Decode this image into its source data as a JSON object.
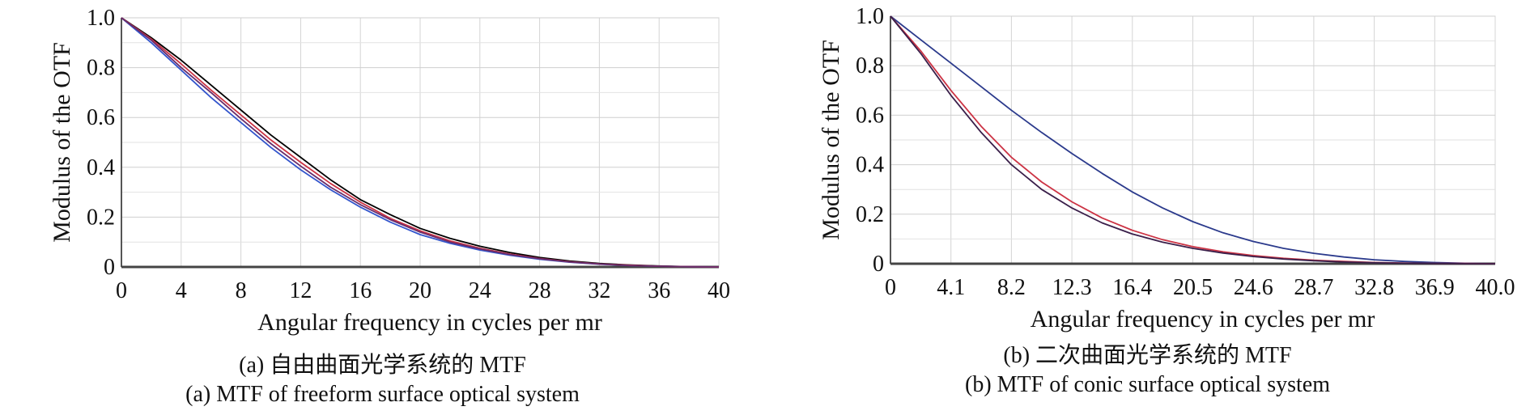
{
  "chart_data": [
    {
      "type": "line",
      "ylabel": "Modulus of the OTF",
      "xlabel": "Angular frequency in cycles per mr",
      "caption_cn": "(a) 自由曲面光学系统的 MTF",
      "caption_en": "(a) MTF of freeform surface optical system",
      "xlim": [
        0,
        40
      ],
      "ylim": [
        0,
        1.0
      ],
      "xticks": [
        "0",
        "4",
        "8",
        "12",
        "16",
        "20",
        "24",
        "28",
        "32",
        "36",
        "40"
      ],
      "yticks": [
        "0",
        "0.2",
        "0.4",
        "0.6",
        "0.8",
        "1.0"
      ],
      "grid": true,
      "series": [
        {
          "color": "#000000",
          "x": [
            0,
            2,
            4,
            6,
            8,
            10,
            12,
            14,
            16,
            18,
            20,
            22,
            24,
            26,
            28,
            30,
            32,
            34,
            36,
            38,
            40
          ],
          "y": [
            1.0,
            0.92,
            0.83,
            0.73,
            0.63,
            0.53,
            0.44,
            0.35,
            0.27,
            0.21,
            0.155,
            0.115,
            0.083,
            0.058,
            0.038,
            0.024,
            0.014,
            0.008,
            0.004,
            0.001,
            0
          ]
        },
        {
          "color": "#3355cc",
          "x": [
            0,
            2,
            4,
            6,
            8,
            10,
            12,
            14,
            16,
            18,
            20,
            22,
            24,
            26,
            28,
            30,
            32,
            34,
            36,
            38,
            40
          ],
          "y": [
            1.0,
            0.9,
            0.79,
            0.68,
            0.58,
            0.48,
            0.39,
            0.31,
            0.24,
            0.18,
            0.13,
            0.095,
            0.068,
            0.047,
            0.031,
            0.019,
            0.011,
            0.006,
            0.003,
            0.001,
            0
          ]
        },
        {
          "color": "#cc3344",
          "x": [
            0,
            2,
            4,
            6,
            8,
            10,
            12,
            14,
            16,
            18,
            20,
            22,
            24,
            26,
            28,
            30,
            32,
            34,
            36,
            38,
            40
          ],
          "y": [
            1.0,
            0.915,
            0.815,
            0.71,
            0.61,
            0.51,
            0.42,
            0.335,
            0.26,
            0.195,
            0.145,
            0.105,
            0.075,
            0.052,
            0.034,
            0.021,
            0.012,
            0.007,
            0.003,
            0.001,
            0
          ]
        },
        {
          "color": "#6a2c6a",
          "x": [
            0,
            2,
            4,
            6,
            8,
            10,
            12,
            14,
            16,
            18,
            20,
            22,
            24,
            26,
            28,
            30,
            32,
            34,
            36,
            38,
            40
          ],
          "y": [
            1.0,
            0.91,
            0.8,
            0.7,
            0.595,
            0.495,
            0.405,
            0.32,
            0.25,
            0.19,
            0.14,
            0.1,
            0.072,
            0.05,
            0.033,
            0.02,
            0.012,
            0.006,
            0.003,
            0.001,
            0
          ]
        }
      ]
    },
    {
      "type": "line",
      "ylabel": "Modulus of the OTF",
      "xlabel": "Angular frequency in cycles per mr",
      "caption_cn": "(b) 二次曲面光学系统的 MTF",
      "caption_en": "(b) MTF of conic surface optical system",
      "xlim": [
        0,
        40
      ],
      "ylim": [
        0,
        1.0
      ],
      "xticks": [
        "0",
        "4.1",
        "8.2",
        "12.3",
        "16.4",
        "20.5",
        "24.6",
        "28.7",
        "32.8",
        "36.9",
        "40.0"
      ],
      "yticks": [
        "0",
        "0.2",
        "0.4",
        "0.6",
        "0.8",
        "1.0"
      ],
      "grid": true,
      "series": [
        {
          "color": "#2b3a8c",
          "x": [
            0,
            2,
            4,
            6,
            8,
            10,
            12,
            14,
            16,
            18,
            20,
            22,
            24,
            26,
            28,
            30,
            32,
            34,
            36,
            38,
            40
          ],
          "y": [
            1.0,
            0.905,
            0.81,
            0.715,
            0.62,
            0.53,
            0.445,
            0.365,
            0.29,
            0.225,
            0.17,
            0.125,
            0.09,
            0.062,
            0.042,
            0.027,
            0.016,
            0.009,
            0.005,
            0.002,
            0
          ]
        },
        {
          "color": "#cc3344",
          "x": [
            0,
            2,
            4,
            6,
            8,
            10,
            12,
            14,
            16,
            18,
            20,
            22,
            24,
            26,
            28,
            30,
            32,
            34,
            36,
            38,
            40
          ],
          "y": [
            1.0,
            0.86,
            0.7,
            0.555,
            0.43,
            0.33,
            0.25,
            0.185,
            0.135,
            0.097,
            0.069,
            0.048,
            0.033,
            0.022,
            0.014,
            0.009,
            0.005,
            0.003,
            0.001,
            0.001,
            0
          ]
        },
        {
          "color": "#3a1f4a",
          "x": [
            0,
            2,
            4,
            6,
            8,
            10,
            12,
            14,
            16,
            18,
            20,
            22,
            24,
            26,
            28,
            30,
            32,
            34,
            36,
            38,
            40
          ],
          "y": [
            1.0,
            0.85,
            0.68,
            0.53,
            0.4,
            0.3,
            0.225,
            0.165,
            0.12,
            0.087,
            0.062,
            0.043,
            0.029,
            0.019,
            0.012,
            0.007,
            0.004,
            0.002,
            0.001,
            0,
            0
          ]
        }
      ]
    }
  ]
}
